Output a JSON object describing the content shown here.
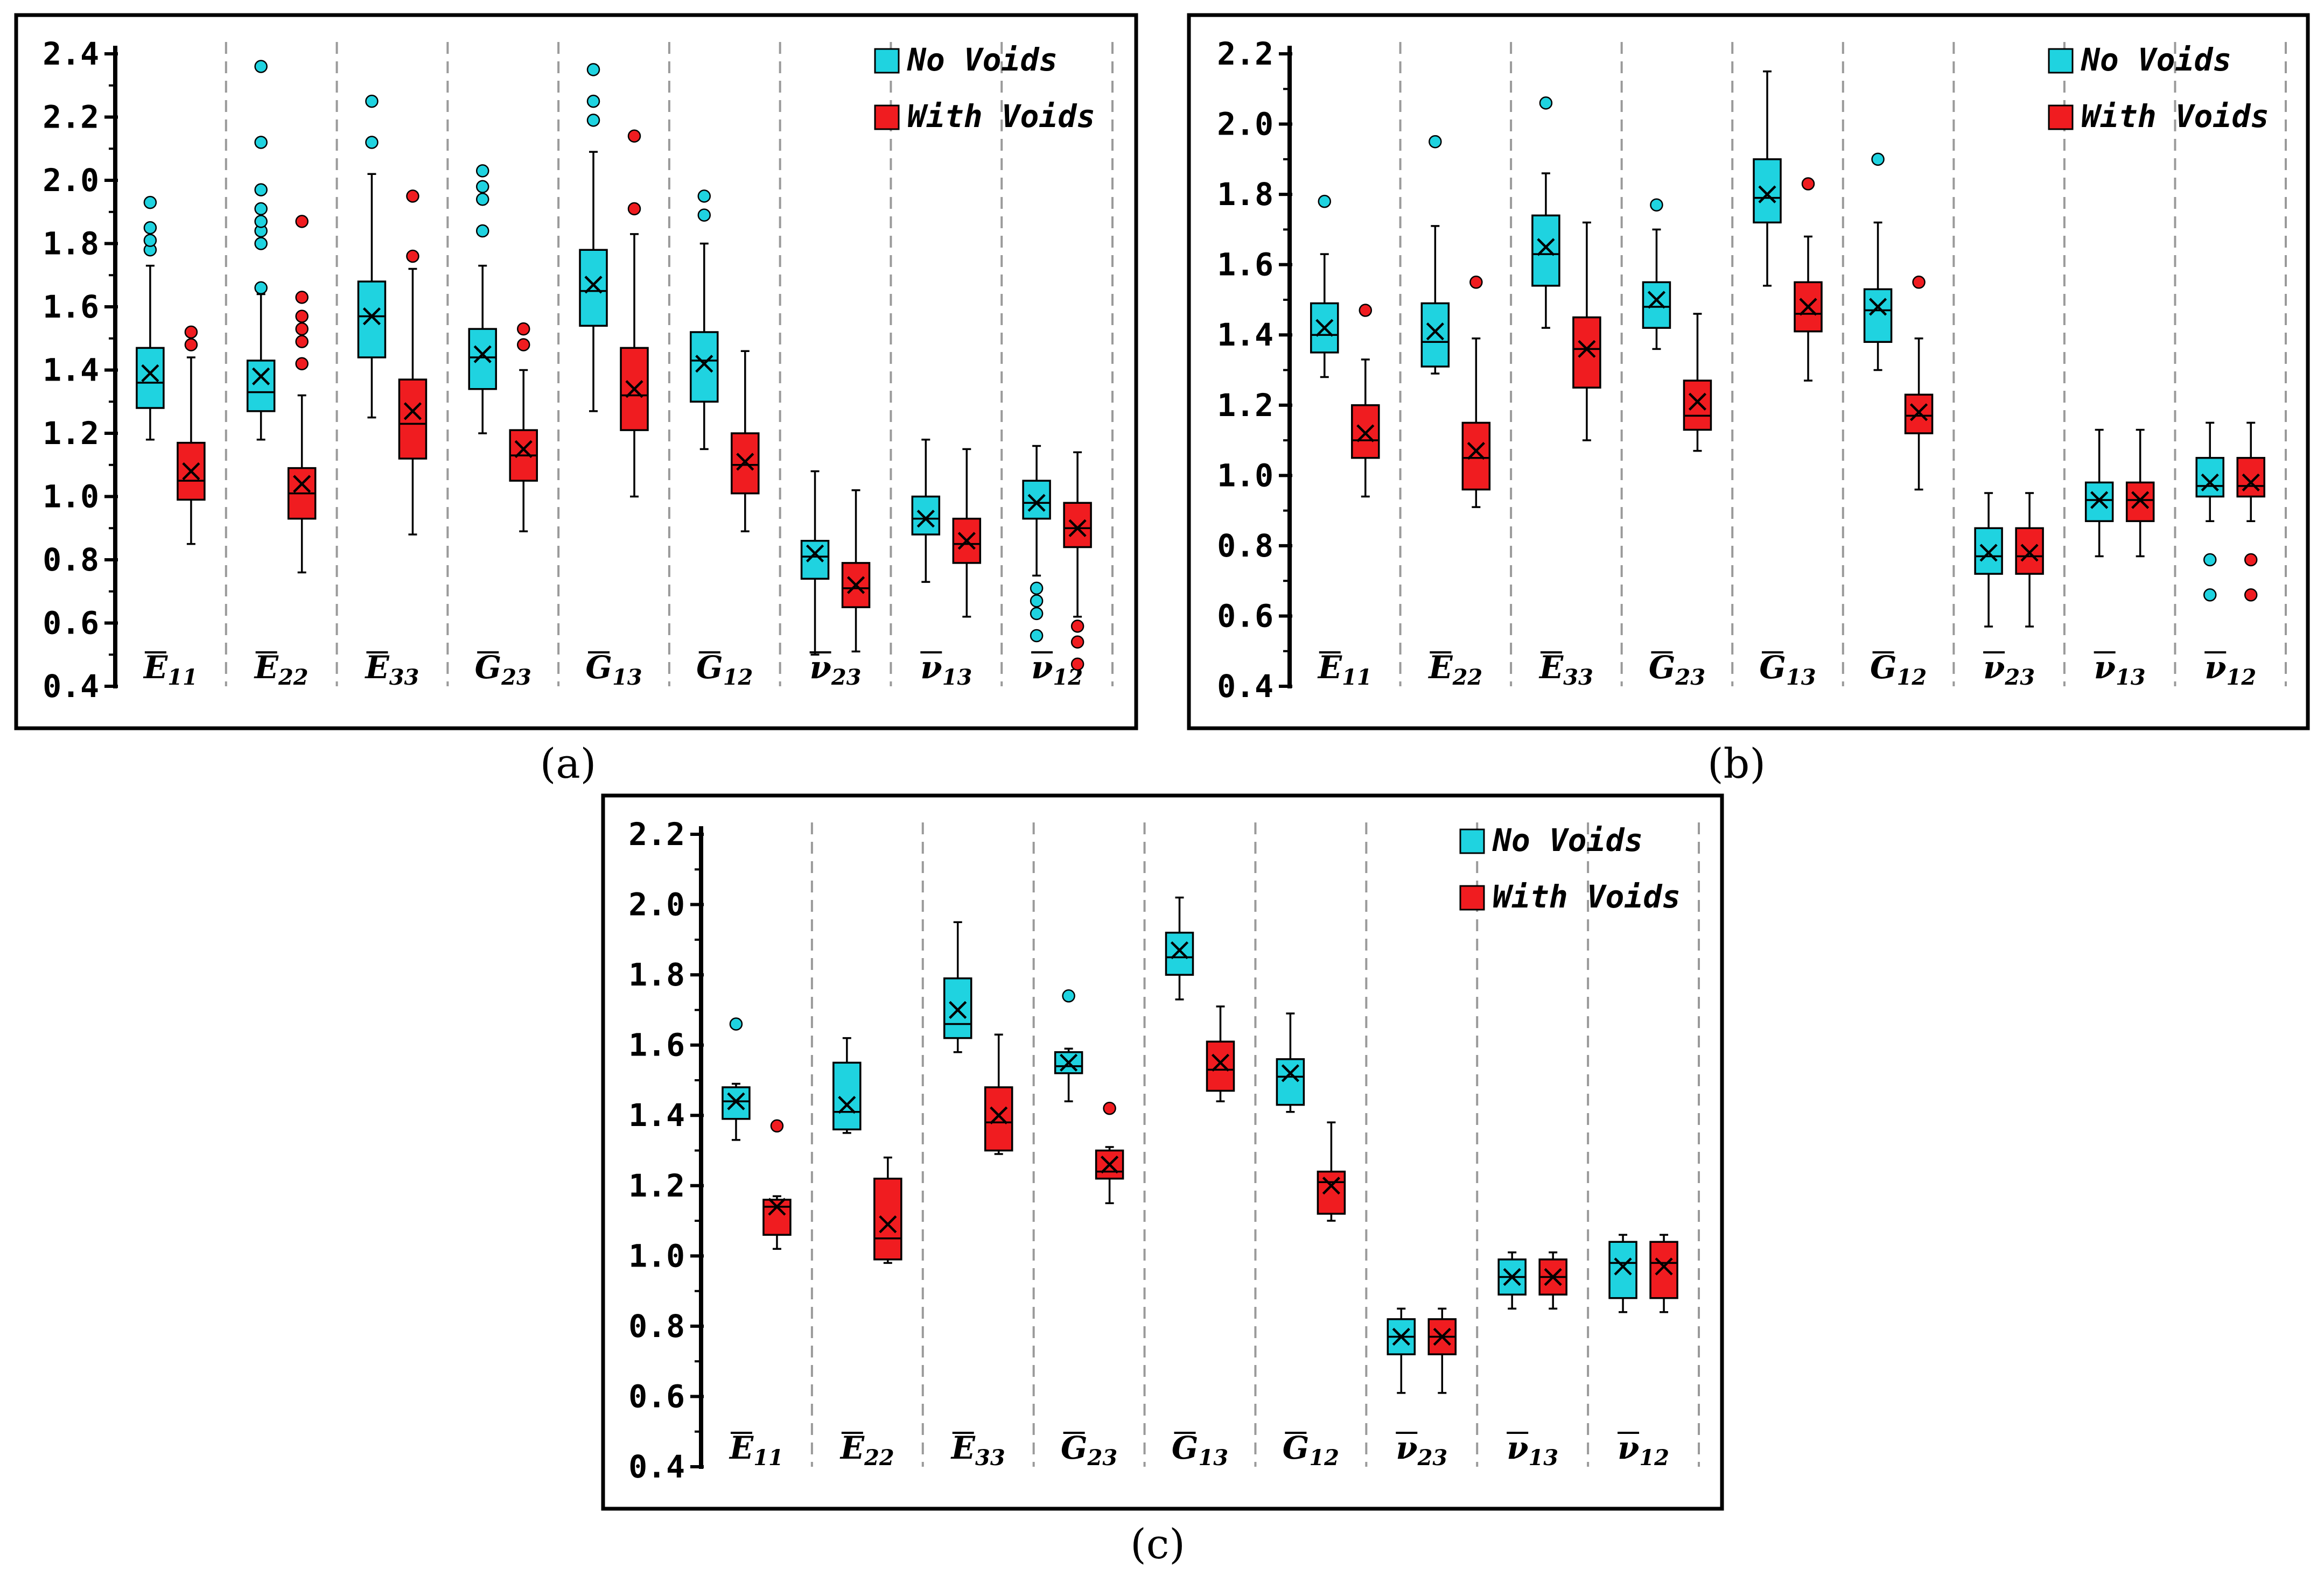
{
  "chart_data": [
    {
      "type": "box",
      "panel": "a",
      "panel_label": "(a)",
      "ylim": [
        0.4,
        2.4
      ],
      "yticks": [
        "0.4",
        "0.6",
        "0.8",
        "1.0",
        "1.2",
        "1.4",
        "1.6",
        "1.8",
        "2.0",
        "2.2",
        "2.4"
      ],
      "categories": [
        {
          "sym": "E",
          "sub": "11"
        },
        {
          "sym": "E",
          "sub": "22"
        },
        {
          "sym": "E",
          "sub": "33"
        },
        {
          "sym": "G",
          "sub": "23"
        },
        {
          "sym": "G",
          "sub": "13"
        },
        {
          "sym": "G",
          "sub": "12"
        },
        {
          "sym": "ν",
          "sub": "23"
        },
        {
          "sym": "ν",
          "sub": "13"
        },
        {
          "sym": "ν",
          "sub": "12"
        }
      ],
      "legend": [
        {
          "name": "No Voids",
          "color": "#1fd3e0"
        },
        {
          "name": "With Voids",
          "color": "#f01c20"
        }
      ],
      "series": [
        {
          "name": "No Voids",
          "color": "#1fd3e0",
          "boxes": [
            {
              "min": 1.18,
              "q1": 1.28,
              "median": 1.36,
              "q3": 1.47,
              "max": 1.73,
              "mean": 1.39,
              "outliers": [
                1.78,
                1.81,
                1.85,
                1.93
              ]
            },
            {
              "min": 1.18,
              "q1": 1.27,
              "median": 1.33,
              "q3": 1.43,
              "max": 1.64,
              "mean": 1.38,
              "outliers": [
                1.66,
                1.8,
                1.84,
                1.87,
                1.91,
                1.97,
                2.12,
                2.36
              ]
            },
            {
              "min": 1.25,
              "q1": 1.44,
              "median": 1.57,
              "q3": 1.68,
              "max": 2.02,
              "mean": 1.57,
              "outliers": [
                2.12,
                2.25
              ]
            },
            {
              "min": 1.2,
              "q1": 1.34,
              "median": 1.44,
              "q3": 1.53,
              "max": 1.73,
              "mean": 1.45,
              "outliers": [
                1.84,
                1.94,
                1.98,
                2.03
              ]
            },
            {
              "min": 1.27,
              "q1": 1.54,
              "median": 1.65,
              "q3": 1.78,
              "max": 2.09,
              "mean": 1.67,
              "outliers": [
                2.19,
                2.25,
                2.35
              ]
            },
            {
              "min": 1.15,
              "q1": 1.3,
              "median": 1.43,
              "q3": 1.52,
              "max": 1.8,
              "mean": 1.42,
              "outliers": [
                1.89,
                1.95
              ]
            },
            {
              "min": 0.5,
              "q1": 0.74,
              "median": 0.81,
              "q3": 0.86,
              "max": 1.08,
              "mean": 0.82,
              "outliers": []
            },
            {
              "min": 0.73,
              "q1": 0.88,
              "median": 0.93,
              "q3": 1.0,
              "max": 1.18,
              "mean": 0.93,
              "outliers": []
            },
            {
              "min": 0.75,
              "q1": 0.93,
              "median": 0.98,
              "q3": 1.05,
              "max": 1.16,
              "mean": 0.98,
              "outliers": [
                0.56,
                0.63,
                0.67,
                0.71
              ]
            }
          ]
        },
        {
          "name": "With Voids",
          "color": "#f01c20",
          "boxes": [
            {
              "min": 0.85,
              "q1": 0.99,
              "median": 1.05,
              "q3": 1.17,
              "max": 1.44,
              "mean": 1.08,
              "outliers": [
                1.48,
                1.52
              ]
            },
            {
              "min": 0.76,
              "q1": 0.93,
              "median": 1.01,
              "q3": 1.09,
              "max": 1.32,
              "mean": 1.04,
              "outliers": [
                1.42,
                1.49,
                1.53,
                1.57,
                1.63,
                1.87
              ]
            },
            {
              "min": 0.88,
              "q1": 1.12,
              "median": 1.23,
              "q3": 1.37,
              "max": 1.72,
              "mean": 1.27,
              "outliers": [
                1.76,
                1.95
              ]
            },
            {
              "min": 0.89,
              "q1": 1.05,
              "median": 1.13,
              "q3": 1.21,
              "max": 1.4,
              "mean": 1.15,
              "outliers": [
                1.48,
                1.53
              ]
            },
            {
              "min": 1.0,
              "q1": 1.21,
              "median": 1.32,
              "q3": 1.47,
              "max": 1.83,
              "mean": 1.34,
              "outliers": [
                1.91,
                2.14
              ]
            },
            {
              "min": 0.89,
              "q1": 1.01,
              "median": 1.1,
              "q3": 1.2,
              "max": 1.46,
              "mean": 1.11,
              "outliers": []
            },
            {
              "min": 0.51,
              "q1": 0.65,
              "median": 0.71,
              "q3": 0.79,
              "max": 1.02,
              "mean": 0.72,
              "outliers": []
            },
            {
              "min": 0.62,
              "q1": 0.79,
              "median": 0.85,
              "q3": 0.93,
              "max": 1.15,
              "mean": 0.86,
              "outliers": []
            },
            {
              "min": 0.62,
              "q1": 0.84,
              "median": 0.9,
              "q3": 0.98,
              "max": 1.14,
              "mean": 0.9,
              "outliers": [
                0.47,
                0.54,
                0.59
              ]
            }
          ]
        }
      ]
    },
    {
      "type": "box",
      "panel": "b",
      "panel_label": "(b)",
      "ylim": [
        0.4,
        2.2
      ],
      "yticks": [
        "0.4",
        "0.6",
        "0.8",
        "1.0",
        "1.2",
        "1.4",
        "1.6",
        "1.8",
        "2.0",
        "2.2"
      ],
      "categories": [
        {
          "sym": "E",
          "sub": "11"
        },
        {
          "sym": "E",
          "sub": "22"
        },
        {
          "sym": "E",
          "sub": "33"
        },
        {
          "sym": "G",
          "sub": "23"
        },
        {
          "sym": "G",
          "sub": "13"
        },
        {
          "sym": "G",
          "sub": "12"
        },
        {
          "sym": "ν",
          "sub": "23"
        },
        {
          "sym": "ν",
          "sub": "13"
        },
        {
          "sym": "ν",
          "sub": "12"
        }
      ],
      "legend": [
        {
          "name": "No Voids",
          "color": "#1fd3e0"
        },
        {
          "name": "With Voids",
          "color": "#f01c20"
        }
      ],
      "series": [
        {
          "name": "No Voids",
          "color": "#1fd3e0",
          "boxes": [
            {
              "min": 1.28,
              "q1": 1.35,
              "median": 1.4,
              "q3": 1.49,
              "max": 1.63,
              "mean": 1.42,
              "outliers": [
                1.78
              ]
            },
            {
              "min": 1.29,
              "q1": 1.31,
              "median": 1.38,
              "q3": 1.49,
              "max": 1.71,
              "mean": 1.41,
              "outliers": [
                1.95
              ]
            },
            {
              "min": 1.42,
              "q1": 1.54,
              "median": 1.63,
              "q3": 1.74,
              "max": 1.86,
              "mean": 1.65,
              "outliers": [
                2.06
              ]
            },
            {
              "min": 1.36,
              "q1": 1.42,
              "median": 1.48,
              "q3": 1.55,
              "max": 1.7,
              "mean": 1.5,
              "outliers": [
                1.77
              ]
            },
            {
              "min": 1.54,
              "q1": 1.72,
              "median": 1.79,
              "q3": 1.9,
              "max": 2.15,
              "mean": 1.8,
              "outliers": []
            },
            {
              "min": 1.3,
              "q1": 1.38,
              "median": 1.47,
              "q3": 1.53,
              "max": 1.72,
              "mean": 1.48,
              "outliers": [
                1.9
              ]
            },
            {
              "min": 0.57,
              "q1": 0.72,
              "median": 0.77,
              "q3": 0.85,
              "max": 0.95,
              "mean": 0.78,
              "outliers": []
            },
            {
              "min": 0.77,
              "q1": 0.87,
              "median": 0.93,
              "q3": 0.98,
              "max": 1.13,
              "mean": 0.93,
              "outliers": []
            },
            {
              "min": 0.87,
              "q1": 0.94,
              "median": 0.97,
              "q3": 1.05,
              "max": 1.15,
              "mean": 0.98,
              "outliers": [
                0.66,
                0.76
              ]
            }
          ]
        },
        {
          "name": "With Voids",
          "color": "#f01c20",
          "boxes": [
            {
              "min": 0.94,
              "q1": 1.05,
              "median": 1.1,
              "q3": 1.2,
              "max": 1.33,
              "mean": 1.12,
              "outliers": [
                1.47
              ]
            },
            {
              "min": 0.91,
              "q1": 0.96,
              "median": 1.05,
              "q3": 1.15,
              "max": 1.39,
              "mean": 1.07,
              "outliers": [
                1.55
              ]
            },
            {
              "min": 1.1,
              "q1": 1.25,
              "median": 1.36,
              "q3": 1.45,
              "max": 1.72,
              "mean": 1.36,
              "outliers": []
            },
            {
              "min": 1.07,
              "q1": 1.13,
              "median": 1.17,
              "q3": 1.27,
              "max": 1.46,
              "mean": 1.21,
              "outliers": []
            },
            {
              "min": 1.27,
              "q1": 1.41,
              "median": 1.46,
              "q3": 1.55,
              "max": 1.68,
              "mean": 1.48,
              "outliers": [
                1.83
              ]
            },
            {
              "min": 0.96,
              "q1": 1.12,
              "median": 1.17,
              "q3": 1.23,
              "max": 1.39,
              "mean": 1.18,
              "outliers": [
                1.55
              ]
            },
            {
              "min": 0.57,
              "q1": 0.72,
              "median": 0.77,
              "q3": 0.85,
              "max": 0.95,
              "mean": 0.78,
              "outliers": []
            },
            {
              "min": 0.77,
              "q1": 0.87,
              "median": 0.93,
              "q3": 0.98,
              "max": 1.13,
              "mean": 0.93,
              "outliers": []
            },
            {
              "min": 0.87,
              "q1": 0.94,
              "median": 0.97,
              "q3": 1.05,
              "max": 1.15,
              "mean": 0.98,
              "outliers": [
                0.66,
                0.76
              ]
            }
          ]
        }
      ]
    },
    {
      "type": "box",
      "panel": "c",
      "panel_label": "(c)",
      "ylim": [
        0.4,
        2.2
      ],
      "yticks": [
        "0.4",
        "0.6",
        "0.8",
        "1.0",
        "1.2",
        "1.4",
        "1.6",
        "1.8",
        "2.0",
        "2.2"
      ],
      "categories": [
        {
          "sym": "E",
          "sub": "11"
        },
        {
          "sym": "E",
          "sub": "22"
        },
        {
          "sym": "E",
          "sub": "33"
        },
        {
          "sym": "G",
          "sub": "23"
        },
        {
          "sym": "G",
          "sub": "13"
        },
        {
          "sym": "G",
          "sub": "12"
        },
        {
          "sym": "ν",
          "sub": "23"
        },
        {
          "sym": "ν",
          "sub": "13"
        },
        {
          "sym": "ν",
          "sub": "12"
        }
      ],
      "legend": [
        {
          "name": "No Voids",
          "color": "#1fd3e0"
        },
        {
          "name": "With Voids",
          "color": "#f01c20"
        }
      ],
      "series": [
        {
          "name": "No Voids",
          "color": "#1fd3e0",
          "boxes": [
            {
              "min": 1.33,
              "q1": 1.39,
              "median": 1.44,
              "q3": 1.48,
              "max": 1.49,
              "mean": 1.44,
              "outliers": [
                1.66
              ]
            },
            {
              "min": 1.35,
              "q1": 1.36,
              "median": 1.41,
              "q3": 1.55,
              "max": 1.62,
              "mean": 1.43,
              "outliers": []
            },
            {
              "min": 1.58,
              "q1": 1.62,
              "median": 1.66,
              "q3": 1.79,
              "max": 1.95,
              "mean": 1.7,
              "outliers": []
            },
            {
              "min": 1.44,
              "q1": 1.52,
              "median": 1.54,
              "q3": 1.58,
              "max": 1.59,
              "mean": 1.55,
              "outliers": [
                1.74
              ]
            },
            {
              "min": 1.73,
              "q1": 1.8,
              "median": 1.85,
              "q3": 1.92,
              "max": 2.02,
              "mean": 1.87,
              "outliers": []
            },
            {
              "min": 1.41,
              "q1": 1.43,
              "median": 1.51,
              "q3": 1.56,
              "max": 1.69,
              "mean": 1.52,
              "outliers": []
            },
            {
              "min": 0.61,
              "q1": 0.72,
              "median": 0.77,
              "q3": 0.82,
              "max": 0.85,
              "mean": 0.77,
              "outliers": []
            },
            {
              "min": 0.85,
              "q1": 0.89,
              "median": 0.94,
              "q3": 0.99,
              "max": 1.01,
              "mean": 0.94,
              "outliers": []
            },
            {
              "min": 0.84,
              "q1": 0.88,
              "median": 0.98,
              "q3": 1.04,
              "max": 1.06,
              "mean": 0.97,
              "outliers": []
            }
          ]
        },
        {
          "name": "With Voids",
          "color": "#f01c20",
          "boxes": [
            {
              "min": 1.02,
              "q1": 1.06,
              "median": 1.14,
              "q3": 1.16,
              "max": 1.17,
              "mean": 1.14,
              "outliers": [
                1.37
              ]
            },
            {
              "min": 0.98,
              "q1": 0.99,
              "median": 1.05,
              "q3": 1.22,
              "max": 1.28,
              "mean": 1.09,
              "outliers": []
            },
            {
              "min": 1.29,
              "q1": 1.3,
              "median": 1.38,
              "q3": 1.48,
              "max": 1.63,
              "mean": 1.4,
              "outliers": []
            },
            {
              "min": 1.15,
              "q1": 1.22,
              "median": 1.24,
              "q3": 1.3,
              "max": 1.31,
              "mean": 1.26,
              "outliers": [
                1.42
              ]
            },
            {
              "min": 1.44,
              "q1": 1.47,
              "median": 1.53,
              "q3": 1.61,
              "max": 1.71,
              "mean": 1.55,
              "outliers": []
            },
            {
              "min": 1.1,
              "q1": 1.12,
              "median": 1.21,
              "q3": 1.24,
              "max": 1.38,
              "mean": 1.2,
              "outliers": []
            },
            {
              "min": 0.61,
              "q1": 0.72,
              "median": 0.77,
              "q3": 0.82,
              "max": 0.85,
              "mean": 0.77,
              "outliers": []
            },
            {
              "min": 0.85,
              "q1": 0.89,
              "median": 0.94,
              "q3": 0.99,
              "max": 1.01,
              "mean": 0.94,
              "outliers": []
            },
            {
              "min": 0.84,
              "q1": 0.88,
              "median": 0.98,
              "q3": 1.04,
              "max": 1.06,
              "mean": 0.97,
              "outliers": []
            }
          ]
        }
      ]
    }
  ]
}
